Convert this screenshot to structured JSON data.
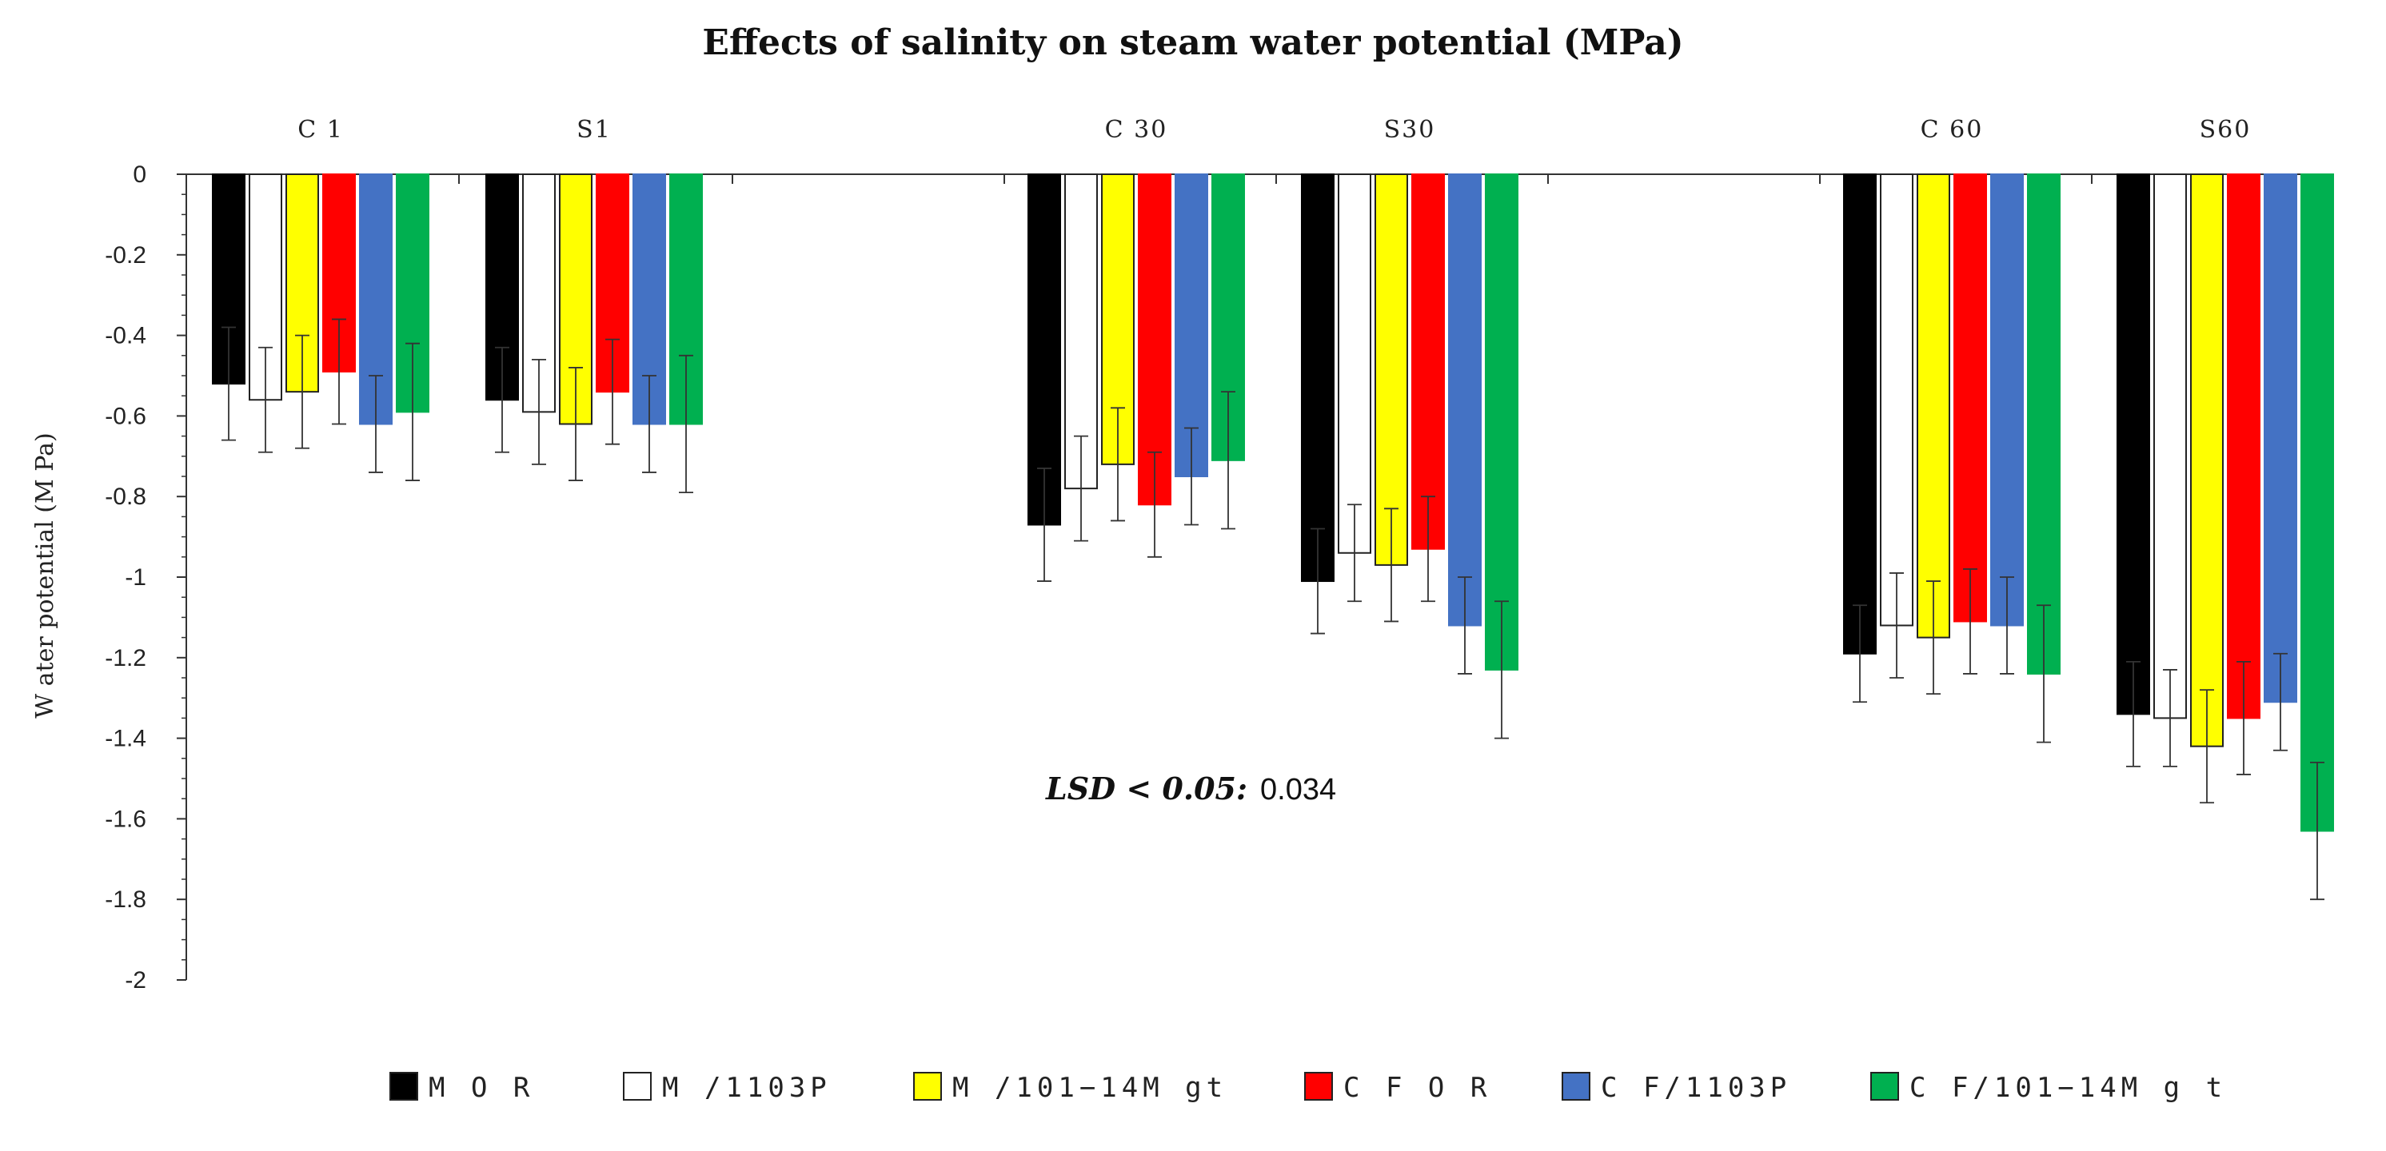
{
  "chart_data": {
    "type": "bar",
    "title": "Effects of salinity on steam water potential (MPa)",
    "ylabel": "W ater potential (M Pa)",
    "xlabel": "",
    "ylim": [
      -2,
      0
    ],
    "yticks": [
      0,
      -0.2,
      -0.4,
      -0.6,
      -0.8,
      -1,
      -1.2,
      -1.4,
      -1.6,
      -1.8,
      -2
    ],
    "ytick_labels": [
      "0",
      "-0.2",
      "-0.4",
      "-0.6",
      "-0.8",
      "-1",
      "-1.2",
      "-1.4",
      "-1.6",
      "-1.8",
      "-2"
    ],
    "categories": [
      "C 1",
      "S1",
      "C 30",
      "S30",
      "C 60",
      "S60"
    ],
    "series": [
      {
        "name": "M O R",
        "color": "#000000",
        "values": [
          -0.52,
          -0.56,
          -0.87,
          -1.01,
          -1.19,
          -1.34
        ],
        "errors": [
          0.14,
          0.13,
          0.14,
          0.13,
          0.12,
          0.13
        ]
      },
      {
        "name": "M /1103P",
        "color": "#ffffff",
        "values": [
          -0.56,
          -0.59,
          -0.78,
          -0.94,
          -1.12,
          -1.35
        ],
        "errors": [
          0.13,
          0.13,
          0.13,
          0.12,
          0.13,
          0.12
        ]
      },
      {
        "name": "M /101−14M gt",
        "color": "#ffff00",
        "values": [
          -0.54,
          -0.62,
          -0.72,
          -0.97,
          -1.15,
          -1.42
        ],
        "errors": [
          0.14,
          0.14,
          0.14,
          0.14,
          0.14,
          0.14
        ]
      },
      {
        "name": "C F O R",
        "color": "#ff0000",
        "values": [
          -0.49,
          -0.54,
          -0.82,
          -0.93,
          -1.11,
          -1.35
        ],
        "errors": [
          0.13,
          0.13,
          0.13,
          0.13,
          0.13,
          0.14
        ]
      },
      {
        "name": "C F/1103P",
        "color": "#4472c4",
        "values": [
          -0.62,
          -0.62,
          -0.75,
          -1.12,
          -1.12,
          -1.31
        ],
        "errors": [
          0.12,
          0.12,
          0.12,
          0.12,
          0.12,
          0.12
        ]
      },
      {
        "name": "C F/101−14M g t",
        "color": "#00b050",
        "values": [
          -0.59,
          -0.62,
          -0.71,
          -1.23,
          -1.24,
          -1.63
        ],
        "errors": [
          0.17,
          0.17,
          0.17,
          0.17,
          0.17,
          0.17
        ]
      }
    ],
    "annotation": {
      "label": "LSD < 0.05:",
      "value": "0.034"
    },
    "legend_position": "bottom"
  }
}
